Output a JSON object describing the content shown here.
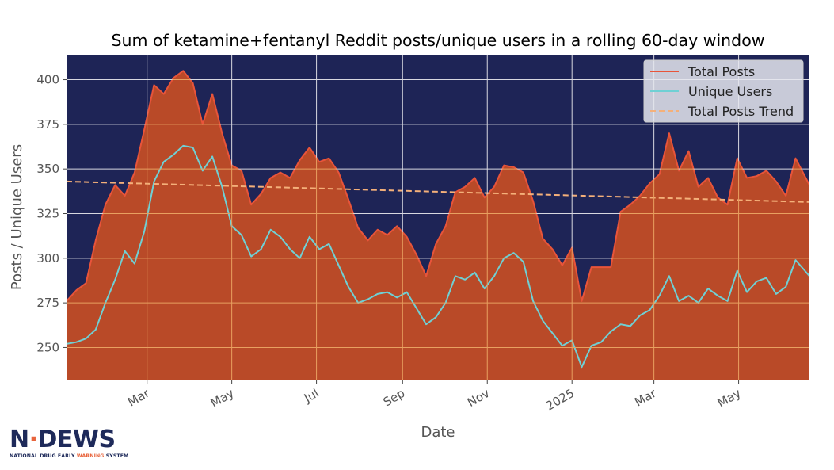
{
  "chart_data": {
    "type": "area",
    "title": "Sum of ketamine+fentanyl Reddit posts/unique users in a rolling 60-day window",
    "xlabel": "Date",
    "ylabel": "Posts / Unique Users",
    "xlim": [
      "2024-01-03",
      "2025-06-21"
    ],
    "ylim": [
      232,
      414
    ],
    "yticks": [
      250,
      275,
      300,
      325,
      350,
      375,
      400
    ],
    "xticks": [
      {
        "date": "2024-03-01",
        "label": "Mar"
      },
      {
        "date": "2024-05-01",
        "label": "May"
      },
      {
        "date": "2024-07-01",
        "label": "Jul"
      },
      {
        "date": "2024-09-01",
        "label": "Sep"
      },
      {
        "date": "2024-11-01",
        "label": "Nov"
      },
      {
        "date": "2025-01-01",
        "label": "2025"
      },
      {
        "date": "2025-03-01",
        "label": "Mar"
      },
      {
        "date": "2025-05-01",
        "label": "May"
      }
    ],
    "legend_position": "top-right",
    "grid": true,
    "background_color": "#1e2456",
    "series": [
      {
        "name": "Total Posts",
        "color": "#e8543a",
        "fill": "#b94a28",
        "style": "line+area",
        "points": [
          [
            "2024-01-03",
            276
          ],
          [
            "2024-01-10",
            282
          ],
          [
            "2024-01-17",
            286
          ],
          [
            "2024-01-24",
            310
          ],
          [
            "2024-01-31",
            330
          ],
          [
            "2024-02-07",
            341
          ],
          [
            "2024-02-14",
            335
          ],
          [
            "2024-02-21",
            348
          ],
          [
            "2024-02-28",
            372
          ],
          [
            "2024-03-06",
            397
          ],
          [
            "2024-03-13",
            392
          ],
          [
            "2024-03-20",
            401
          ],
          [
            "2024-03-27",
            405
          ],
          [
            "2024-04-03",
            398
          ],
          [
            "2024-04-10",
            375
          ],
          [
            "2024-04-17",
            392
          ],
          [
            "2024-04-24",
            370
          ],
          [
            "2024-05-01",
            352
          ],
          [
            "2024-05-08",
            349
          ],
          [
            "2024-05-15",
            330
          ],
          [
            "2024-05-22",
            336
          ],
          [
            "2024-05-29",
            345
          ],
          [
            "2024-06-05",
            348
          ],
          [
            "2024-06-12",
            345
          ],
          [
            "2024-06-19",
            355
          ],
          [
            "2024-06-26",
            362
          ],
          [
            "2024-07-03",
            354
          ],
          [
            "2024-07-10",
            356
          ],
          [
            "2024-07-17",
            348
          ],
          [
            "2024-07-24",
            333
          ],
          [
            "2024-07-31",
            317
          ],
          [
            "2024-08-07",
            310
          ],
          [
            "2024-08-14",
            316
          ],
          [
            "2024-08-21",
            313
          ],
          [
            "2024-08-28",
            318
          ],
          [
            "2024-09-04",
            312
          ],
          [
            "2024-09-11",
            302
          ],
          [
            "2024-09-18",
            290
          ],
          [
            "2024-09-25",
            308
          ],
          [
            "2024-10-02",
            318
          ],
          [
            "2024-10-09",
            337
          ],
          [
            "2024-10-16",
            340
          ],
          [
            "2024-10-23",
            345
          ],
          [
            "2024-10-30",
            334
          ],
          [
            "2024-11-06",
            340
          ],
          [
            "2024-11-13",
            352
          ],
          [
            "2024-11-20",
            351
          ],
          [
            "2024-11-27",
            348
          ],
          [
            "2024-12-04",
            332
          ],
          [
            "2024-12-11",
            311
          ],
          [
            "2024-12-18",
            305
          ],
          [
            "2024-12-25",
            296
          ],
          [
            "2025-01-01",
            306
          ],
          [
            "2025-01-08",
            276
          ],
          [
            "2025-01-15",
            295
          ],
          [
            "2025-01-22",
            295
          ],
          [
            "2025-01-29",
            295
          ],
          [
            "2025-02-05",
            326
          ],
          [
            "2025-02-12",
            330
          ],
          [
            "2025-02-19",
            335
          ],
          [
            "2025-02-26",
            342
          ],
          [
            "2025-03-05",
            347
          ],
          [
            "2025-03-12",
            370
          ],
          [
            "2025-03-19",
            349
          ],
          [
            "2025-03-26",
            360
          ],
          [
            "2025-04-02",
            340
          ],
          [
            "2025-04-09",
            345
          ],
          [
            "2025-04-16",
            334
          ],
          [
            "2025-04-23",
            330
          ],
          [
            "2025-04-30",
            356
          ],
          [
            "2025-05-07",
            345
          ],
          [
            "2025-05-14",
            346
          ],
          [
            "2025-05-21",
            349
          ],
          [
            "2025-05-28",
            343
          ],
          [
            "2025-06-04",
            335
          ],
          [
            "2025-06-11",
            356
          ],
          [
            "2025-06-21",
            341
          ]
        ]
      },
      {
        "name": "Unique Users",
        "color": "#6fd0d4",
        "style": "line",
        "points": [
          [
            "2024-01-03",
            252
          ],
          [
            "2024-01-10",
            253
          ],
          [
            "2024-01-17",
            255
          ],
          [
            "2024-01-24",
            260
          ],
          [
            "2024-01-31",
            275
          ],
          [
            "2024-02-07",
            288
          ],
          [
            "2024-02-14",
            304
          ],
          [
            "2024-02-21",
            297
          ],
          [
            "2024-02-28",
            315
          ],
          [
            "2024-03-06",
            343
          ],
          [
            "2024-03-13",
            354
          ],
          [
            "2024-03-20",
            358
          ],
          [
            "2024-03-27",
            363
          ],
          [
            "2024-04-03",
            362
          ],
          [
            "2024-04-10",
            349
          ],
          [
            "2024-04-17",
            357
          ],
          [
            "2024-04-24",
            340
          ],
          [
            "2024-05-01",
            318
          ],
          [
            "2024-05-08",
            313
          ],
          [
            "2024-05-15",
            301
          ],
          [
            "2024-05-22",
            305
          ],
          [
            "2024-05-29",
            316
          ],
          [
            "2024-06-05",
            312
          ],
          [
            "2024-06-12",
            305
          ],
          [
            "2024-06-19",
            300
          ],
          [
            "2024-06-26",
            312
          ],
          [
            "2024-07-03",
            305
          ],
          [
            "2024-07-10",
            308
          ],
          [
            "2024-07-17",
            296
          ],
          [
            "2024-07-24",
            284
          ],
          [
            "2024-07-31",
            275
          ],
          [
            "2024-08-07",
            277
          ],
          [
            "2024-08-14",
            280
          ],
          [
            "2024-08-21",
            281
          ],
          [
            "2024-08-28",
            278
          ],
          [
            "2024-09-04",
            281
          ],
          [
            "2024-09-11",
            272
          ],
          [
            "2024-09-18",
            263
          ],
          [
            "2024-09-25",
            267
          ],
          [
            "2024-10-02",
            275
          ],
          [
            "2024-10-09",
            290
          ],
          [
            "2024-10-16",
            288
          ],
          [
            "2024-10-23",
            292
          ],
          [
            "2024-10-30",
            283
          ],
          [
            "2024-11-06",
            290
          ],
          [
            "2024-11-13",
            300
          ],
          [
            "2024-11-20",
            303
          ],
          [
            "2024-11-27",
            298
          ],
          [
            "2024-12-04",
            276
          ],
          [
            "2024-12-11",
            265
          ],
          [
            "2024-12-18",
            258
          ],
          [
            "2024-12-25",
            251
          ],
          [
            "2025-01-01",
            254
          ],
          [
            "2025-01-08",
            239
          ],
          [
            "2025-01-15",
            251
          ],
          [
            "2025-01-22",
            253
          ],
          [
            "2025-01-29",
            259
          ],
          [
            "2025-02-05",
            263
          ],
          [
            "2025-02-12",
            262
          ],
          [
            "2025-02-19",
            268
          ],
          [
            "2025-02-26",
            271
          ],
          [
            "2025-03-05",
            279
          ],
          [
            "2025-03-12",
            290
          ],
          [
            "2025-03-19",
            276
          ],
          [
            "2025-03-26",
            279
          ],
          [
            "2025-04-02",
            275
          ],
          [
            "2025-04-09",
            283
          ],
          [
            "2025-04-16",
            279
          ],
          [
            "2025-04-23",
            276
          ],
          [
            "2025-04-30",
            293
          ],
          [
            "2025-05-07",
            281
          ],
          [
            "2025-05-14",
            287
          ],
          [
            "2025-05-21",
            289
          ],
          [
            "2025-05-28",
            280
          ],
          [
            "2025-06-04",
            284
          ],
          [
            "2025-06-11",
            299
          ],
          [
            "2025-06-21",
            290
          ]
        ]
      },
      {
        "name": "Total Posts Trend",
        "color": "#f4b07a",
        "style": "dashed",
        "points": [
          [
            "2024-01-03",
            343
          ],
          [
            "2025-06-21",
            331.5
          ]
        ]
      }
    ],
    "grid_color_upper": "#d8d8e0",
    "grid_color_lower": "#e8a060"
  },
  "logo": {
    "main_left": "N",
    "main_dot": "·",
    "main_right": "DEWS",
    "sub_before": "NATIONAL DRUG EARLY ",
    "sub_highlight": "WARNING",
    "sub_after": " SYSTEM"
  }
}
